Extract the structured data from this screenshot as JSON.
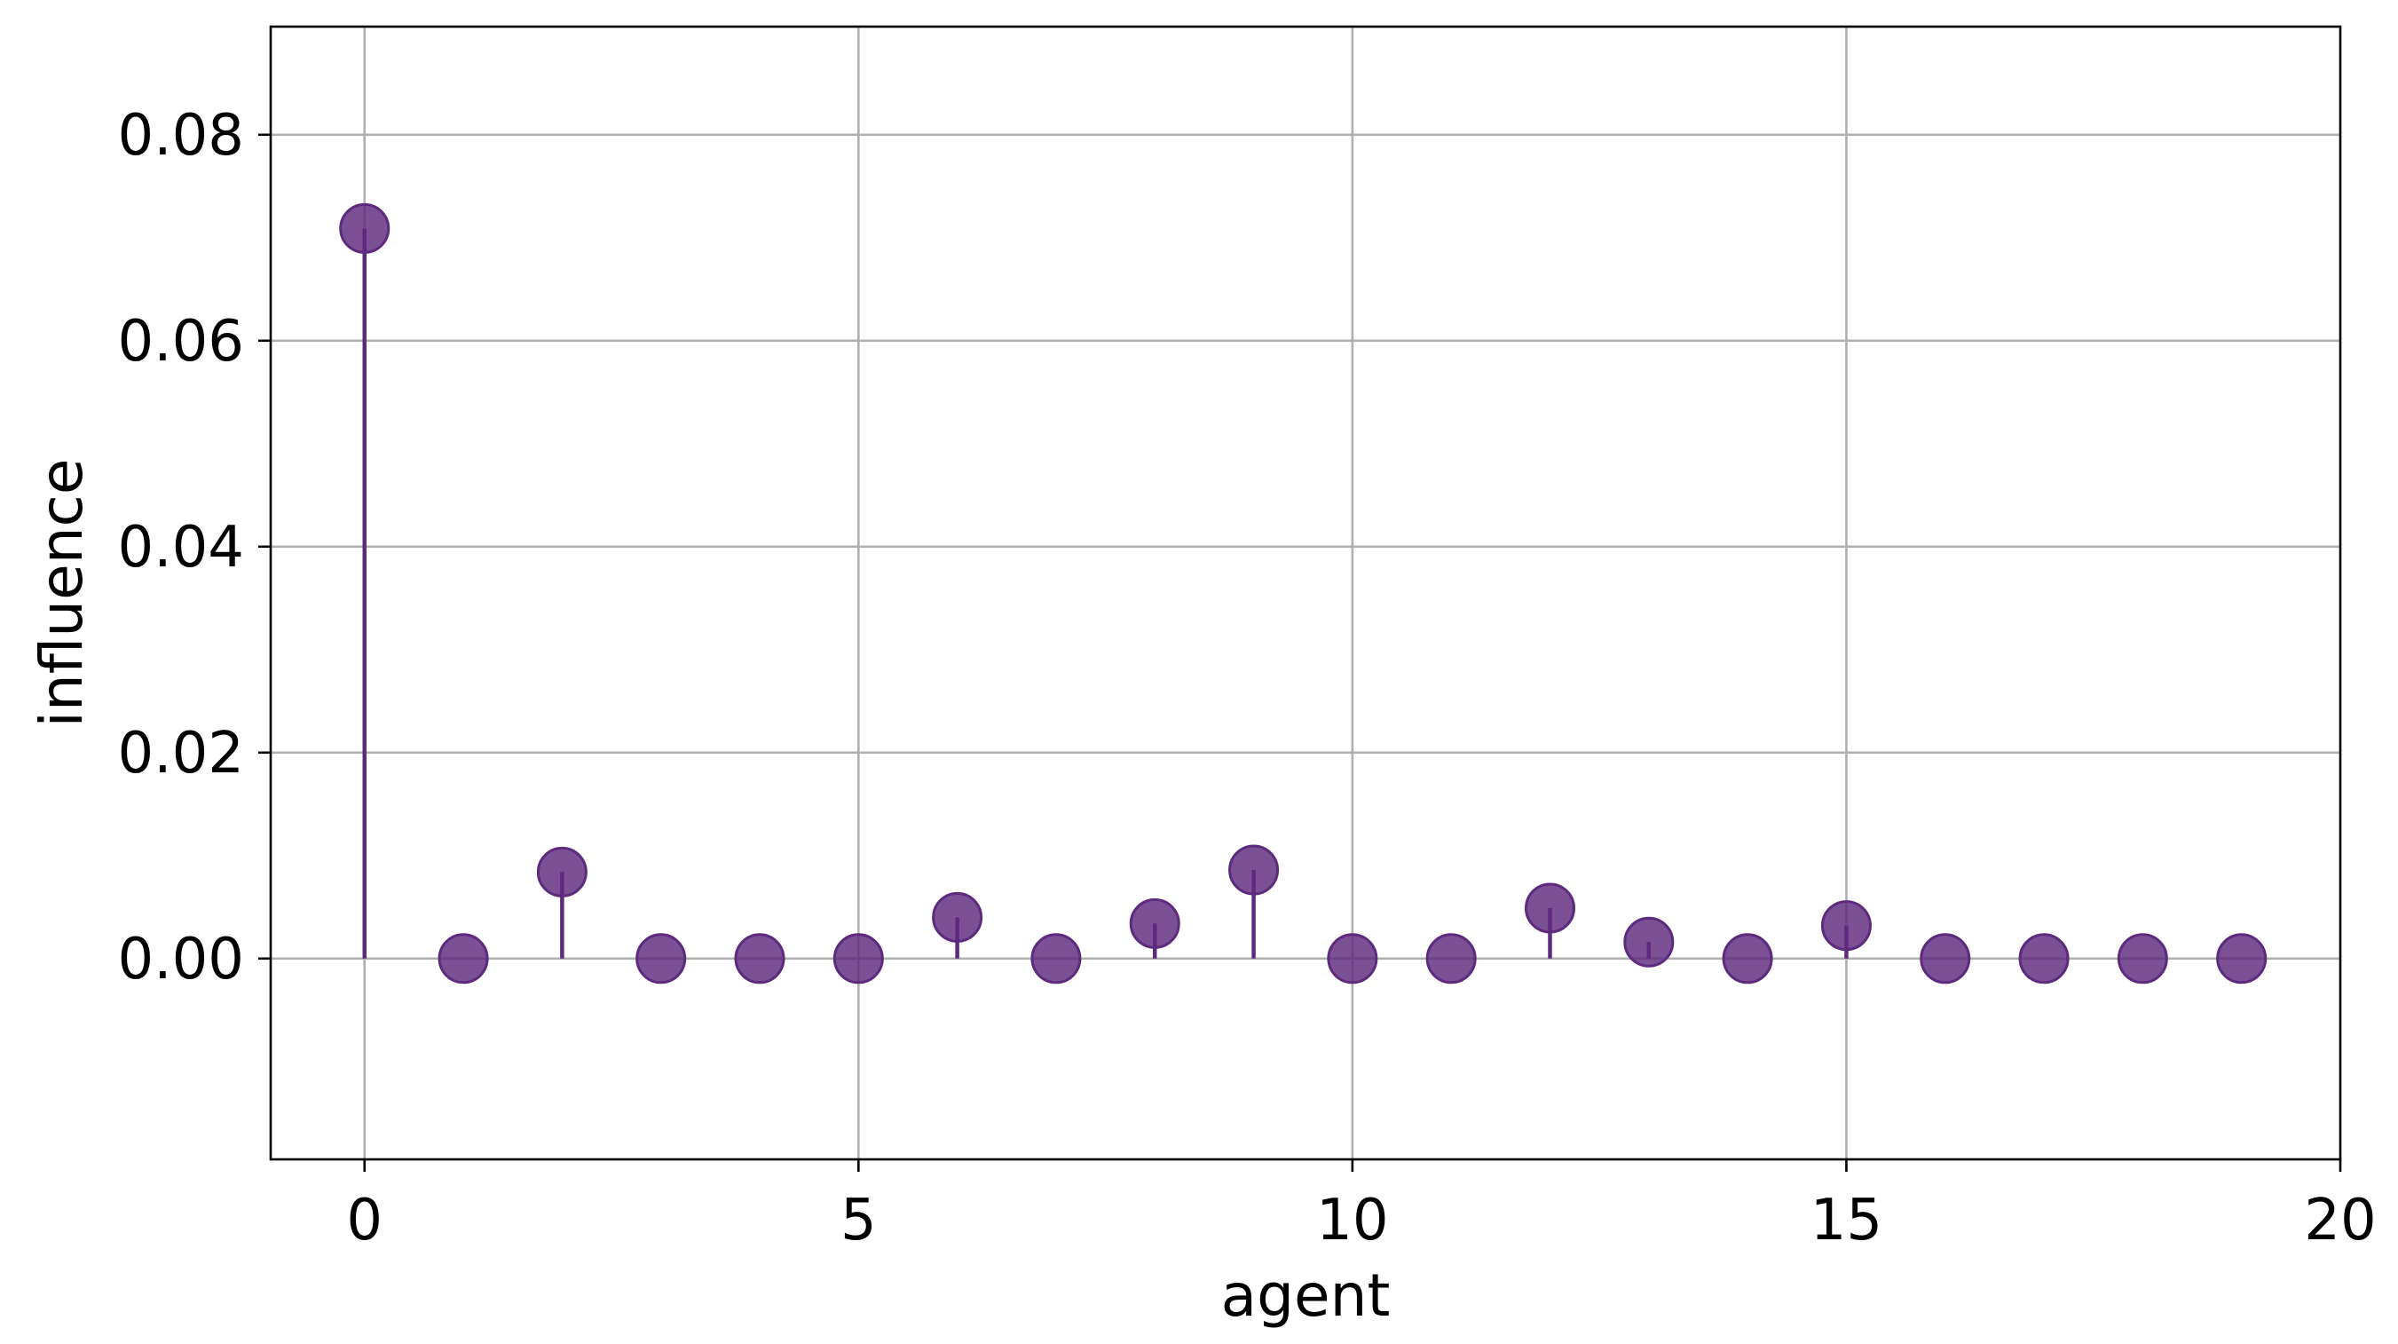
{
  "chart_data": {
    "type": "scatter",
    "style": "stem",
    "xlabel": "agent",
    "ylabel": "influence",
    "xlim": [
      -0.95,
      20
    ],
    "ylim": [
      -0.0195,
      0.0905
    ],
    "xticks": [
      0,
      5,
      10,
      15,
      20
    ],
    "yticks": [
      0.0,
      0.02,
      0.04,
      0.06,
      0.08
    ],
    "xtick_labels": [
      "0",
      "5",
      "10",
      "15",
      "20"
    ],
    "ytick_labels": [
      "0.00",
      "0.02",
      "0.04",
      "0.06",
      "0.08"
    ],
    "grid": true,
    "color": "#5e2a7e",
    "x": [
      0,
      1,
      2,
      3,
      4,
      5,
      6,
      7,
      8,
      9,
      10,
      11,
      12,
      13,
      14,
      15,
      16,
      17,
      18,
      19
    ],
    "y": [
      0.0709,
      0.0,
      0.0084,
      0.0,
      0.0,
      0.0,
      0.004,
      0.0,
      0.0034,
      0.0086,
      0.0,
      0.0,
      0.0049,
      0.0016,
      0.0,
      0.0032,
      0.0,
      0.0,
      0.0,
      0.0
    ]
  }
}
